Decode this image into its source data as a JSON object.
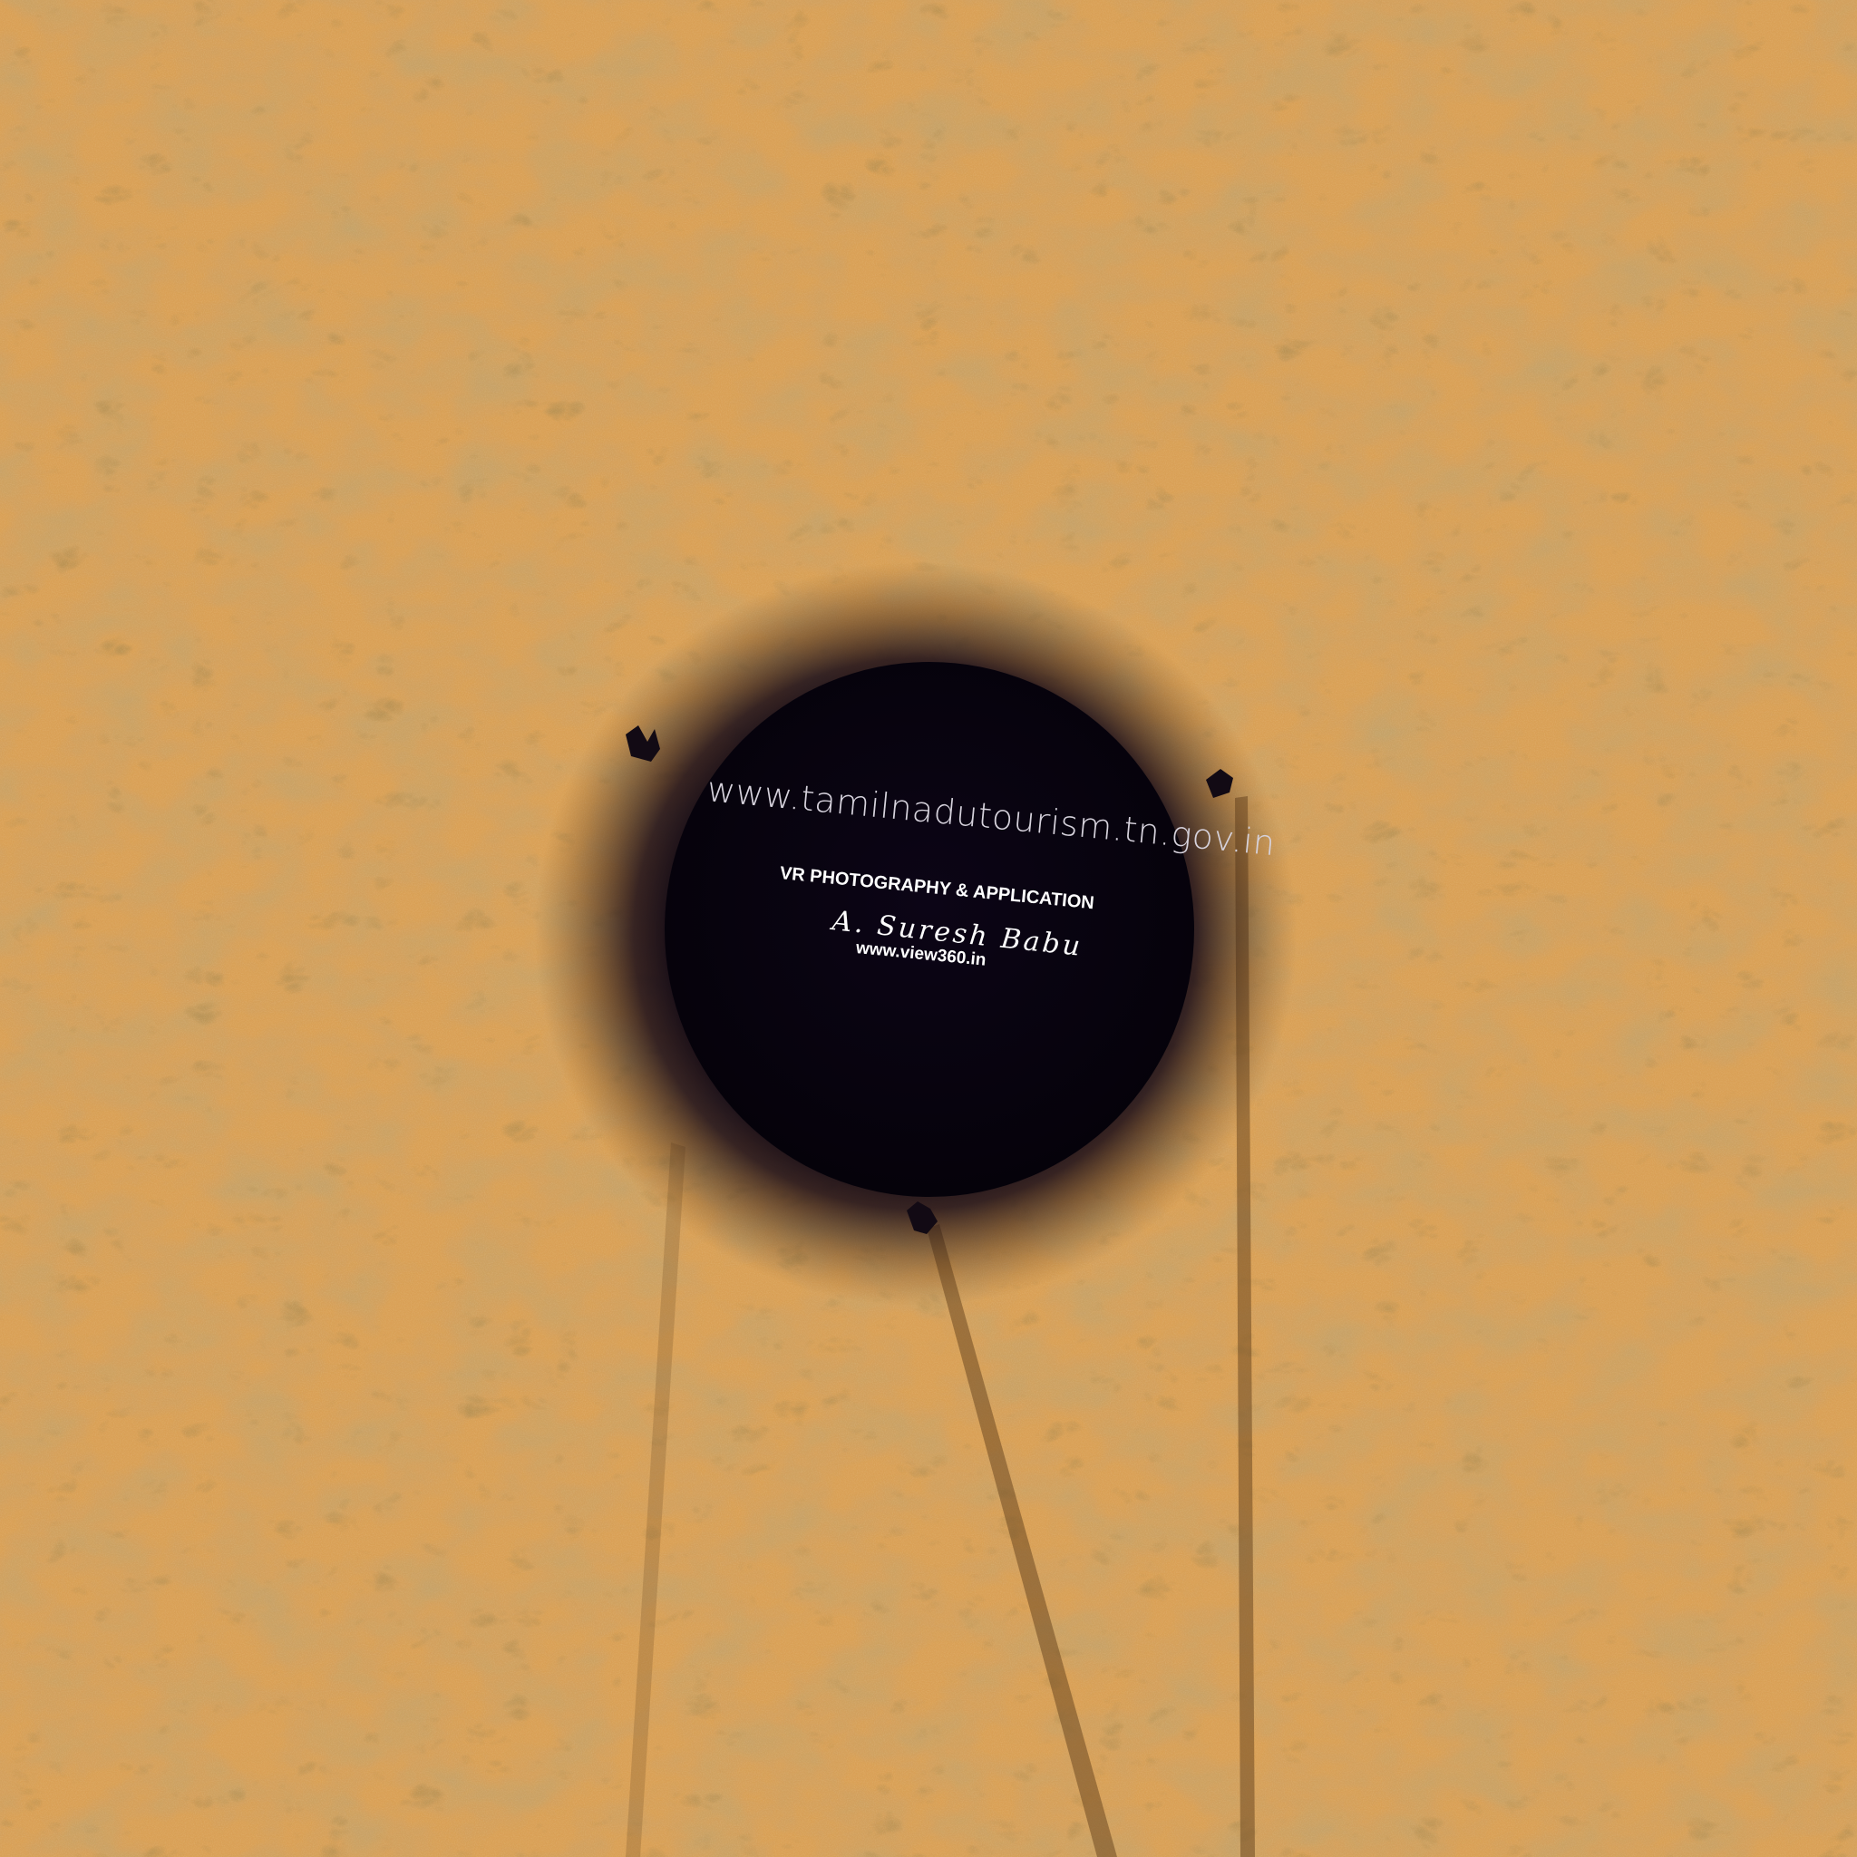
{
  "watermark": {
    "url": "www.tamilnadutourism.tn.gov.in",
    "title": "VR PHOTOGRAPHY & APPLICATION",
    "signature": "A. Suresh Babu",
    "site": "www.view360.in"
  },
  "colors": {
    "sand": "#d9a056",
    "sand_shadow": "#b47a35",
    "sand_highlight": "#eab96e",
    "nadir_patch": "#0a0412"
  }
}
